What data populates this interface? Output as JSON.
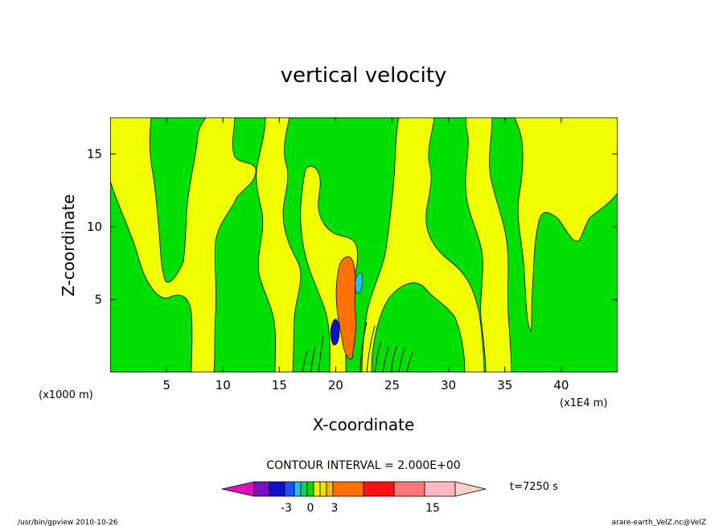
{
  "chart_data": {
    "type": "heatmap",
    "title": "vertical velocity",
    "xlabel": "X-coordinate",
    "ylabel": "Z-coordinate",
    "x_unit_left": "(x1000 m)",
    "x_unit_right": "(x1E4 m)",
    "xlim": [
      0,
      45
    ],
    "ylim": [
      0,
      17.5
    ],
    "x_ticks": [
      5,
      10,
      15,
      20,
      25,
      30,
      35,
      40
    ],
    "y_ticks": [
      5,
      10,
      15
    ],
    "contour_interval": "CONTOUR INTERVAL = 2.000E+00",
    "time_label": "t=7250 s",
    "colorbar": {
      "colors": [
        "#e010c0",
        "#7a10c0",
        "#1010c8",
        "#2050f0",
        "#20c0f0",
        "#10d060",
        "#00e000",
        "#f0f000",
        "#f0e000",
        "#f0c000",
        "#ff7000",
        "#ff1010",
        "#ff7878",
        "#ffb8c0",
        "#ffd0c8"
      ],
      "tick_labels": [
        "-3",
        "0",
        "3",
        "15"
      ]
    },
    "field_colors": {
      "positive": "#f0ff00",
      "negative": "#00e000",
      "strong_up": "#ff7000",
      "strong_down": "#1010c8"
    }
  },
  "footer": {
    "left": "/usr/bin/gpview   2010-10-26",
    "right": "arare-earth_VelZ.nc@VelZ"
  }
}
